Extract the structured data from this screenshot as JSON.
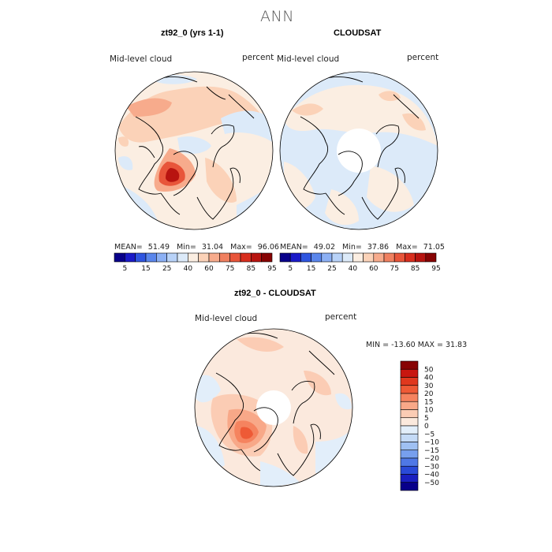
{
  "title": "ANN",
  "panels": [
    {
      "title": "zt92_0 (yrs 1-1)",
      "left_label": "Mid-level cloud",
      "right_label": "percent",
      "stats": {
        "mean_label": "MEAN=",
        "mean": "51.49",
        "min_label": "Min=",
        "min": "31.04",
        "max_label": "Max=",
        "max": "96.06"
      }
    },
    {
      "title": "CLOUDSAT",
      "left_label": "Mid-level cloud",
      "right_label": "percent",
      "stats": {
        "mean_label": "MEAN=",
        "mean": "49.02",
        "min_label": "Min=",
        "min": "37.86",
        "max_label": "Max=",
        "max": "71.05"
      }
    },
    {
      "title": "zt92_0 - CLOUDSAT",
      "left_label": "Mid-level cloud",
      "right_label": "percent",
      "minmax": "MIN = -13.60 MAX =  31.83"
    }
  ],
  "colorbar_abs": {
    "colors": [
      "#08008a",
      "#1a1ac8",
      "#2f55e0",
      "#5a86ec",
      "#8cb0f4",
      "#b8d2f8",
      "#dceaf9",
      "#fbeee2",
      "#fbd2b8",
      "#f7ab8c",
      "#f08060",
      "#e8553a",
      "#d82e1e",
      "#b81410",
      "#870404"
    ],
    "tick_labels": [
      "5",
      "15",
      "25",
      "40",
      "60",
      "75",
      "85",
      "95"
    ]
  },
  "colorbar_diff": {
    "colors": [
      "#870404",
      "#c81610",
      "#e0381e",
      "#ee5a36",
      "#f5835f",
      "#f8a888",
      "#fbccb4",
      "#fbe9dd",
      "#e2eefa",
      "#c4daf6",
      "#9fc0f2",
      "#779fee",
      "#4f78e6",
      "#2a4ad8",
      "#1a1fc0",
      "#08008a"
    ],
    "tick_labels": [
      "50",
      "40",
      "30",
      "20",
      "15",
      "10",
      "5",
      "0",
      "−5",
      "−10",
      "−15",
      "−20",
      "−30",
      "−40",
      "−50"
    ]
  },
  "chart_data": [
    {
      "type": "heatmap",
      "title": "zt92_0 (yrs 1-1)",
      "projection": "north polar stereographic",
      "variable": "Mid-level cloud",
      "units": "percent",
      "mean": 51.49,
      "min": 31.04,
      "max": 96.06,
      "contour_levels": [
        5,
        10,
        15,
        20,
        25,
        30,
        40,
        50,
        60,
        70,
        75,
        80,
        85,
        90,
        95
      ],
      "colors": [
        "#08008a",
        "#1a1ac8",
        "#2f55e0",
        "#5a86ec",
        "#8cb0f4",
        "#b8d2f8",
        "#dceaf9",
        "#fbeee2",
        "#fbd2b8",
        "#f7ab8c",
        "#f08060",
        "#e8553a",
        "#d82e1e",
        "#b81410",
        "#870404"
      ]
    },
    {
      "type": "heatmap",
      "title": "CLOUDSAT",
      "projection": "north polar stereographic",
      "variable": "Mid-level cloud",
      "units": "percent",
      "mean": 49.02,
      "min": 37.86,
      "max": 71.05,
      "contour_levels": [
        5,
        10,
        15,
        20,
        25,
        30,
        40,
        50,
        60,
        70,
        75,
        80,
        85,
        90,
        95
      ],
      "colors": [
        "#08008a",
        "#1a1ac8",
        "#2f55e0",
        "#5a86ec",
        "#8cb0f4",
        "#b8d2f8",
        "#dceaf9",
        "#fbeee2",
        "#fbd2b8",
        "#f7ab8c",
        "#f08060",
        "#e8553a",
        "#d82e1e",
        "#b81410",
        "#870404"
      ]
    },
    {
      "type": "heatmap",
      "title": "zt92_0 - CLOUDSAT",
      "projection": "north polar stereographic",
      "variable": "Mid-level cloud",
      "units": "percent",
      "min": -13.6,
      "max": 31.83,
      "contour_levels": [
        -50,
        -40,
        -30,
        -20,
        -15,
        -10,
        -5,
        0,
        5,
        10,
        15,
        20,
        30,
        40,
        50
      ],
      "colors": [
        "#08008a",
        "#1a1fc0",
        "#2a4ad8",
        "#4f78e6",
        "#779fee",
        "#9fc0f2",
        "#c4daf6",
        "#e2eefa",
        "#fbe9dd",
        "#fbccb4",
        "#f8a888",
        "#f5835f",
        "#ee5a36",
        "#e0381e",
        "#c81610",
        "#870404"
      ]
    }
  ]
}
